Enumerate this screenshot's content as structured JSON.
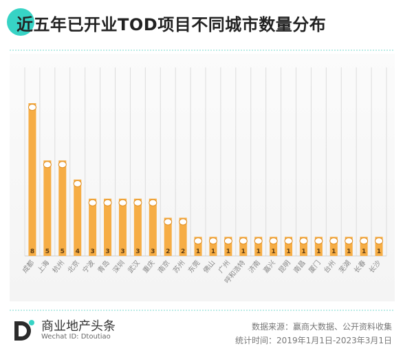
{
  "title": "近五年已开业TOD项目不同城市数量分布",
  "brand": {
    "name": "商业地产头条",
    "wechat_id": "Wechat ID: Dtoutiao",
    "logo_letter": "D",
    "accent": "#37d3c5"
  },
  "footer": {
    "source": "数据来源：赢商大数据、公开资料收集",
    "period": "统计时间：2019年1月1日-2023年3月1日"
  },
  "colors": {
    "bar": "#f6ad45",
    "bar_dark": "#e08e20",
    "grid": "#dcdcdc",
    "axis_label": "#888888"
  },
  "chart_data": {
    "type": "bar",
    "title": "近五年已开业TOD项目不同城市数量分布",
    "categories": [
      "成都",
      "上海",
      "杭州",
      "北京",
      "宁波",
      "青岛",
      "深圳",
      "武汉",
      "重庆",
      "南京",
      "苏州",
      "东莞",
      "佛山",
      "广州",
      "呼和浩特",
      "济南",
      "嘉兴",
      "昆明",
      "南昌",
      "厦门",
      "台州",
      "芜湖",
      "长春",
      "长沙"
    ],
    "values": [
      8,
      5,
      5,
      4,
      3,
      3,
      3,
      3,
      3,
      2,
      2,
      1,
      1,
      1,
      1,
      1,
      1,
      1,
      1,
      1,
      1,
      1,
      1,
      1
    ],
    "ylim": [
      0,
      8
    ],
    "grid": true,
    "data_labels": true
  }
}
